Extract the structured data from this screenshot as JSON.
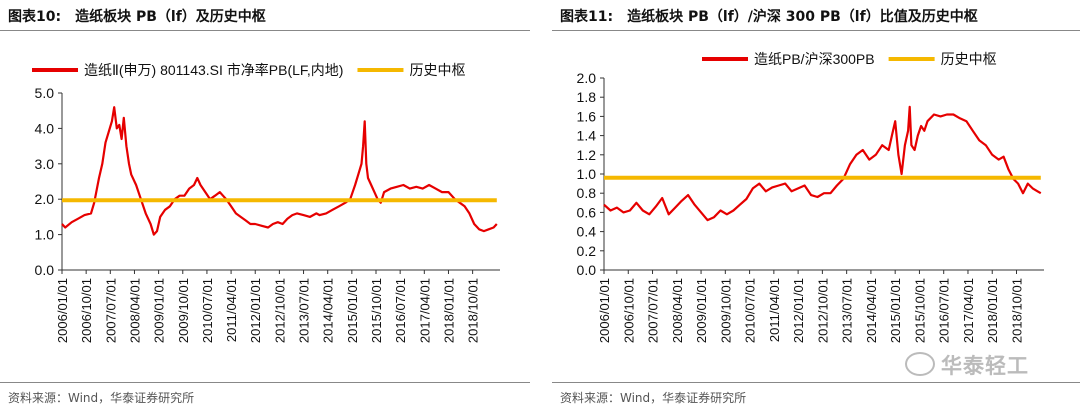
{
  "charts": [
    {
      "figure_no": "图表10:",
      "title": "造纸板块 PB（lf）及历史中枢",
      "source": "资料来源：Wind，华泰证券研究所"
    },
    {
      "figure_no": "图表11:",
      "title": "造纸板块 PB（lf）/沪深 300 PB（lf）比值及历史中枢",
      "source": "资料来源：Wind，华泰证券研究所"
    }
  ],
  "watermark": "华泰轻工",
  "colors": {
    "series": "#E60000",
    "center": "#F5B800",
    "axis": "#333333"
  },
  "chart_data": [
    {
      "type": "line",
      "title": "造纸板块 PB（lf）及历史中枢",
      "legend_position": "top",
      "x_tick_labels": [
        "2006/01/01",
        "2006/10/01",
        "2007/07/01",
        "2008/04/01",
        "2009/01/01",
        "2009/10/01",
        "2010/07/01",
        "2011/04/01",
        "2012/01/01",
        "2012/10/01",
        "2013/07/01",
        "2014/04/01",
        "2015/01/01",
        "2015/10/01",
        "2016/07/01",
        "2017/04/01",
        "2018/01/01",
        "2018/10/01"
      ],
      "xlim": [
        2006.0,
        2019.6
      ],
      "ylim": [
        0,
        5
      ],
      "y_ticks": [
        "0.0",
        "1.0",
        "2.0",
        "3.0",
        "4.0",
        "5.0"
      ],
      "series": [
        {
          "name": "造纸Ⅱ(申万) 801143.SI 市净率PB(LF,内地)",
          "x": [
            2006.0,
            2006.1,
            2006.3,
            2006.5,
            2006.7,
            2006.9,
            2007.0,
            2007.15,
            2007.25,
            2007.35,
            2007.45,
            2007.55,
            2007.62,
            2007.7,
            2007.78,
            2007.85,
            2007.92,
            2008.0,
            2008.08,
            2008.15,
            2008.3,
            2008.45,
            2008.6,
            2008.75,
            2008.85,
            2008.95,
            2009.05,
            2009.2,
            2009.35,
            2009.5,
            2009.65,
            2009.8,
            2009.95,
            2010.1,
            2010.2,
            2010.3,
            2010.45,
            2010.6,
            2010.75,
            2010.9,
            2011.0,
            2011.1,
            2011.25,
            2011.4,
            2011.55,
            2011.7,
            2011.85,
            2012.0,
            2012.2,
            2012.4,
            2012.55,
            2012.7,
            2012.85,
            2013.0,
            2013.15,
            2013.3,
            2013.5,
            2013.7,
            2013.9,
            2014.0,
            2014.2,
            2014.4,
            2014.6,
            2014.8,
            2014.95,
            2015.1,
            2015.2,
            2015.3,
            2015.35,
            2015.4,
            2015.45,
            2015.5,
            2015.6,
            2015.7,
            2015.8,
            2015.9,
            2016.0,
            2016.2,
            2016.4,
            2016.6,
            2016.8,
            2017.0,
            2017.2,
            2017.4,
            2017.6,
            2017.8,
            2018.0,
            2018.2,
            2018.35,
            2018.5,
            2018.65,
            2018.8,
            2018.95,
            2019.1,
            2019.25,
            2019.4,
            2019.5
          ],
          "y": [
            1.3,
            1.2,
            1.35,
            1.45,
            1.55,
            1.6,
            1.9,
            2.6,
            3.0,
            3.6,
            3.9,
            4.2,
            4.6,
            4.0,
            4.1,
            3.7,
            4.3,
            3.5,
            3.0,
            2.7,
            2.4,
            2.0,
            1.6,
            1.3,
            1.0,
            1.1,
            1.5,
            1.7,
            1.8,
            2.0,
            2.1,
            2.1,
            2.3,
            2.4,
            2.6,
            2.4,
            2.2,
            2.0,
            2.1,
            2.2,
            2.1,
            2.0,
            1.8,
            1.6,
            1.5,
            1.4,
            1.3,
            1.3,
            1.25,
            1.2,
            1.3,
            1.35,
            1.3,
            1.45,
            1.55,
            1.6,
            1.55,
            1.5,
            1.6,
            1.55,
            1.6,
            1.7,
            1.8,
            1.9,
            2.0,
            2.4,
            2.7,
            3.0,
            3.5,
            4.2,
            3.0,
            2.6,
            2.4,
            2.2,
            2.0,
            1.9,
            2.2,
            2.3,
            2.35,
            2.4,
            2.3,
            2.35,
            2.3,
            2.4,
            2.3,
            2.2,
            2.2,
            2.0,
            1.9,
            1.8,
            1.6,
            1.3,
            1.15,
            1.1,
            1.15,
            1.2,
            1.3
          ]
        },
        {
          "name": "历史中枢",
          "x": [
            2006.0,
            2019.5
          ],
          "y": [
            1.97,
            1.97
          ]
        }
      ]
    },
    {
      "type": "line",
      "title": "造纸板块 PB（lf）/沪深 300 PB（lf）比值及历史中枢",
      "legend_position": "top",
      "x_tick_labels": [
        "2006/01/01",
        "2006/10/01",
        "2007/07/01",
        "2008/04/01",
        "2009/01/01",
        "2009/10/01",
        "2010/07/01",
        "2011/04/01",
        "2012/01/01",
        "2012/10/01",
        "2013/07/01",
        "2014/04/01",
        "2015/01/01",
        "2015/10/01",
        "2016/07/01",
        "2017/04/01",
        "2018/01/01",
        "2018/10/01"
      ],
      "xlim": [
        2006.0,
        2019.6
      ],
      "ylim": [
        0,
        2.0
      ],
      "y_ticks": [
        "0.0",
        "0.2",
        "0.4",
        "0.6",
        "0.8",
        "1.0",
        "1.2",
        "1.4",
        "1.6",
        "1.8",
        "2.0"
      ],
      "series": [
        {
          "name": "造纸PB/沪深300PB",
          "x": [
            2006.0,
            2006.2,
            2006.4,
            2006.6,
            2006.8,
            2007.0,
            2007.2,
            2007.4,
            2007.6,
            2007.8,
            2008.0,
            2008.2,
            2008.4,
            2008.6,
            2008.8,
            2009.0,
            2009.2,
            2009.4,
            2009.6,
            2009.8,
            2010.0,
            2010.2,
            2010.4,
            2010.6,
            2010.8,
            2011.0,
            2011.2,
            2011.4,
            2011.6,
            2011.8,
            2012.0,
            2012.2,
            2012.4,
            2012.6,
            2012.8,
            2013.0,
            2013.2,
            2013.4,
            2013.6,
            2013.8,
            2014.0,
            2014.2,
            2014.4,
            2014.6,
            2014.8,
            2014.9,
            2015.0,
            2015.1,
            2015.2,
            2015.3,
            2015.4,
            2015.45,
            2015.5,
            2015.6,
            2015.7,
            2015.8,
            2015.9,
            2016.0,
            2016.2,
            2016.4,
            2016.6,
            2016.8,
            2017.0,
            2017.2,
            2017.4,
            2017.6,
            2017.8,
            2018.0,
            2018.2,
            2018.35,
            2018.5,
            2018.65,
            2018.8,
            2018.95,
            2019.1,
            2019.25,
            2019.4,
            2019.5
          ],
          "y": [
            0.68,
            0.62,
            0.65,
            0.6,
            0.62,
            0.7,
            0.62,
            0.58,
            0.66,
            0.75,
            0.58,
            0.65,
            0.72,
            0.78,
            0.68,
            0.6,
            0.52,
            0.55,
            0.62,
            0.58,
            0.62,
            0.68,
            0.74,
            0.85,
            0.9,
            0.82,
            0.86,
            0.88,
            0.9,
            0.82,
            0.85,
            0.88,
            0.78,
            0.76,
            0.8,
            0.8,
            0.88,
            0.95,
            1.1,
            1.2,
            1.25,
            1.15,
            1.2,
            1.3,
            1.25,
            1.4,
            1.55,
            1.2,
            1.0,
            1.3,
            1.45,
            1.7,
            1.3,
            1.25,
            1.4,
            1.5,
            1.45,
            1.55,
            1.62,
            1.6,
            1.62,
            1.62,
            1.58,
            1.55,
            1.45,
            1.35,
            1.3,
            1.2,
            1.15,
            1.18,
            1.05,
            0.95,
            0.9,
            0.8,
            0.9,
            0.85,
            0.82,
            0.8
          ]
        },
        {
          "name": "历史中枢",
          "x": [
            2006.0,
            2019.5
          ],
          "y": [
            0.96,
            0.96
          ]
        }
      ]
    }
  ]
}
